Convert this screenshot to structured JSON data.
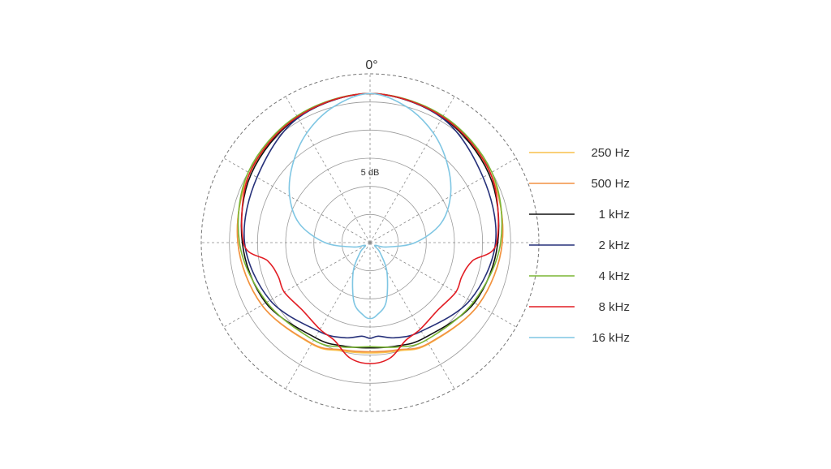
{
  "chart_data": {
    "type": "polar",
    "angle_label": "0°",
    "ring_label": "5 dB",
    "rings": 6,
    "ring_step_db": 5,
    "spoke_step_deg": 30,
    "legend_position": "right",
    "series": [
      {
        "name": "250 Hz",
        "color": "#f9c04b",
        "angles": [
          0,
          30,
          60,
          90,
          120,
          150,
          165,
          180
        ],
        "values": [
          -3.5,
          -4.2,
          -5.3,
          -6.5,
          -7.8,
          -9.2,
          -10.1,
          -10.4
        ]
      },
      {
        "name": "500 Hz",
        "color": "#f29142",
        "angles": [
          0,
          30,
          60,
          90,
          120,
          150,
          165,
          180
        ],
        "values": [
          -3.5,
          -4.2,
          -5.3,
          -6.5,
          -7.8,
          -9.3,
          -10.3,
          -10.6
        ]
      },
      {
        "name": "1 kHz",
        "color": "#111111",
        "angles": [
          0,
          30,
          60,
          90,
          120,
          150,
          165,
          180
        ],
        "values": [
          -3.5,
          -4.3,
          -5.6,
          -7.3,
          -8.6,
          -10.5,
          -11.0,
          -11.3
        ]
      },
      {
        "name": "2 kHz",
        "color": "#27317a",
        "angles": [
          0,
          30,
          60,
          90,
          120,
          150,
          165,
          175,
          180
        ],
        "values": [
          -3.5,
          -4.4,
          -6.8,
          -7.7,
          -9.5,
          -11.8,
          -12.5,
          -13.3,
          -13.0
        ]
      },
      {
        "name": "4 kHz",
        "color": "#7ab634",
        "angles": [
          0,
          30,
          60,
          90,
          120,
          150,
          165,
          180
        ],
        "values": [
          -3.5,
          -4.0,
          -5.0,
          -6.8,
          -8.8,
          -10.0,
          -10.8,
          -11.5
        ]
      },
      {
        "name": "8 kHz",
        "color": "#e21d24",
        "angles": [
          0,
          30,
          60,
          90,
          100,
          110,
          120,
          135,
          150,
          160,
          170,
          180
        ],
        "values": [
          -3.5,
          -4.2,
          -5.3,
          -7.5,
          -11.5,
          -12.6,
          -12.4,
          -13.0,
          -12.2,
          -11.5,
          -9.2,
          -8.5
        ]
      },
      {
        "name": "16 kHz",
        "color": "#7fc6e3",
        "angles": [
          0,
          15,
          30,
          45,
          60,
          75,
          90,
          105,
          120,
          135,
          150,
          165,
          175,
          180
        ],
        "values": [
          -3.5,
          -5.0,
          -7.5,
          -10.5,
          -13.5,
          -17.0,
          -22.0,
          -27.0,
          -29.0,
          -27.5,
          -24.0,
          -19.0,
          -17.0,
          -16.5
        ]
      }
    ]
  }
}
